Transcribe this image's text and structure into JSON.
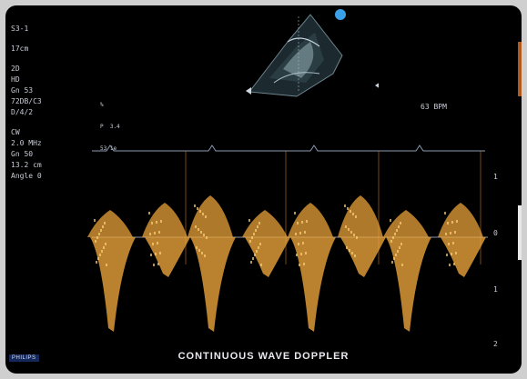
{
  "screen": {
    "left_panel": {
      "probe": "S3-1",
      "depth": "17cm",
      "mode_2d": "2D",
      "harmonic": "HD",
      "gain_2d": "Gn 53",
      "dynamic": "72DB/C3",
      "persistence": "D/4/2",
      "mode_cw": "CW",
      "frequency": "2.0 MHz",
      "gain_cw": "Gn 50",
      "sample_depth": "13.2 cm",
      "angle": "Angle 0"
    },
    "tiny_readout": [
      "%",
      "P  3.4",
      "53 1e"
    ],
    "heart_rate": "63 BPM",
    "velocity_scale": [
      "1",
      "0",
      "1",
      "2"
    ],
    "footer_title": "CONTINUOUS WAVE DOPPLER",
    "brand": "PHILIPS"
  },
  "colors": {
    "doppler": "#e8a23a",
    "doppler_bright": "#ffd27a",
    "baseline": "#8a95ad",
    "ecg": "#8c9bb5",
    "indicator_dot": "#3aa0e8"
  }
}
